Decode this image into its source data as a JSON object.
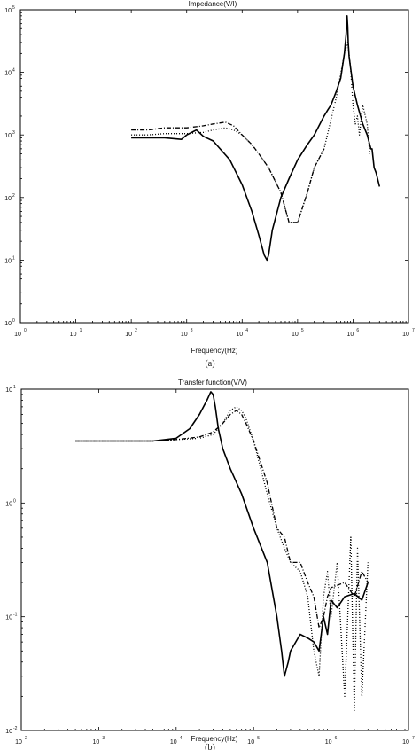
{
  "chart_data": [
    {
      "type": "line",
      "title": "Impedance(V/I)",
      "xlabel": "Frequency(Hz)",
      "ylabel": "",
      "caption": "(a)",
      "xscale": "log",
      "yscale": "log",
      "xlim": [
        1,
        10000000
      ],
      "ylim": [
        1,
        100000
      ],
      "xticks": [
        1,
        10,
        100,
        1000,
        10000,
        100000,
        1000000,
        10000000
      ],
      "yticks": [
        1,
        10,
        100,
        1000,
        10000,
        100000
      ],
      "series": [
        {
          "style": "solid",
          "color": "#000000",
          "x": [
            100,
            200,
            400,
            800,
            1000,
            1500,
            2000,
            3000,
            4000,
            6000,
            10000,
            15000,
            20000,
            25000,
            28000,
            30000,
            35000,
            50000,
            70000,
            100000,
            150000,
            200000,
            300000,
            350000,
            400000,
            500000,
            600000,
            700000,
            750000,
            780000,
            800000,
            820000,
            850000,
            900000,
            1000000,
            1200000,
            1500000,
            1800000,
            2000000,
            2100000,
            2200000,
            2400000,
            2600000,
            3000000
          ],
          "y": [
            900,
            900,
            900,
            850,
            1000,
            1200,
            950,
            800,
            600,
            400,
            160,
            60,
            25,
            12,
            10,
            12,
            30,
            100,
            200,
            400,
            700,
            1000,
            2000,
            2500,
            3000,
            5000,
            8000,
            20000,
            40000,
            80000,
            55000,
            30000,
            18000,
            12000,
            6000,
            3000,
            1500,
            1000,
            700,
            600,
            600,
            300,
            250,
            150
          ]
        },
        {
          "style": "dashdot",
          "color": "#000000",
          "x": [
            100,
            200,
            400,
            1000,
            2000,
            3000,
            5000,
            7000,
            10000,
            15000,
            20000,
            30000,
            50000,
            70000,
            100000,
            150000,
            200000,
            300000
          ],
          "y": [
            1200,
            1200,
            1300,
            1300,
            1400,
            1500,
            1600,
            1400,
            1000,
            700,
            500,
            300,
            120,
            40,
            40,
            120,
            300,
            600
          ]
        },
        {
          "style": "dotted",
          "color": "#000000",
          "x": [
            100,
            200,
            400,
            1000,
            2000,
            3000,
            5000,
            7000,
            10000,
            15000,
            20000,
            30000,
            50000,
            70000,
            100000,
            150000,
            200000,
            300000,
            500000,
            700000,
            800000,
            900000,
            1000000,
            1100000,
            1200000,
            1300000,
            1500000,
            1800000,
            2000000
          ],
          "y": [
            1000,
            1000,
            1050,
            1050,
            1100,
            1200,
            1300,
            1200,
            1000,
            700,
            500,
            300,
            120,
            40,
            40,
            120,
            300,
            600,
            4000,
            20000,
            30000,
            12000,
            3000,
            1500,
            2000,
            1000,
            3000,
            1500,
            500
          ]
        }
      ]
    },
    {
      "type": "line",
      "title": "Transfer function(V/V)",
      "xlabel": "Frequency(Hz)",
      "ylabel": "",
      "caption": "(b)",
      "xscale": "log",
      "yscale": "log",
      "xlim": [
        100,
        10000000
      ],
      "ylim": [
        0.01,
        10
      ],
      "xticks": [
        100,
        1000,
        10000,
        100000,
        1000000,
        10000000
      ],
      "yticks": [
        0.01,
        0.1,
        1,
        10
      ],
      "series": [
        {
          "style": "solid",
          "color": "#000000",
          "x": [
            500,
            1000,
            2000,
            5000,
            10000,
            15000,
            20000,
            25000,
            28000,
            30000,
            32000,
            35000,
            40000,
            50000,
            70000,
            100000,
            150000,
            200000,
            230000,
            250000,
            280000,
            300000,
            350000,
            400000,
            500000,
            600000,
            700000,
            800000,
            900000,
            1000000,
            1200000,
            1500000,
            2000000,
            2500000,
            3000000
          ],
          "y": [
            3.5,
            3.5,
            3.5,
            3.5,
            3.7,
            4.5,
            6,
            8,
            9.5,
            9,
            7,
            4.5,
            3,
            2,
            1.2,
            0.6,
            0.3,
            0.1,
            0.05,
            0.03,
            0.04,
            0.05,
            0.06,
            0.07,
            0.065,
            0.06,
            0.05,
            0.1,
            0.07,
            0.14,
            0.12,
            0.15,
            0.16,
            0.14,
            0.2
          ]
        },
        {
          "style": "dashdot",
          "color": "#000000",
          "x": [
            500,
            1000,
            2000,
            5000,
            10000,
            20000,
            30000,
            40000,
            50000,
            60000,
            70000,
            80000,
            100000,
            150000,
            200000,
            250000,
            300000,
            400000,
            500000,
            600000,
            700000,
            800000,
            900000,
            1000000,
            1500000,
            2000000,
            2500000,
            3000000
          ],
          "y": [
            3.5,
            3.5,
            3.5,
            3.5,
            3.6,
            3.8,
            4.2,
            5,
            6,
            6.5,
            6,
            5,
            3.5,
            1.5,
            0.6,
            0.5,
            0.3,
            0.3,
            0.2,
            0.15,
            0.08,
            0.1,
            0.15,
            0.18,
            0.2,
            0.15,
            0.25,
            0.2
          ]
        },
        {
          "style": "dotted",
          "color": "#000000",
          "x": [
            500,
            1000,
            2000,
            5000,
            10000,
            20000,
            30000,
            40000,
            50000,
            60000,
            70000,
            80000,
            100000,
            150000,
            200000,
            250000,
            300000,
            400000,
            500000,
            600000,
            700000,
            800000,
            900000,
            1000000,
            1200000,
            1500000,
            1800000,
            2000000,
            2200000,
            2500000,
            3000000
          ],
          "y": [
            3.5,
            3.5,
            3.5,
            3.5,
            3.6,
            3.7,
            4,
            5,
            6.5,
            7,
            6.5,
            5.5,
            3.5,
            1.2,
            0.6,
            0.4,
            0.3,
            0.25,
            0.15,
            0.05,
            0.03,
            0.15,
            0.25,
            0.1,
            0.3,
            0.02,
            0.5,
            0.015,
            0.4,
            0.02,
            0.3
          ]
        }
      ]
    }
  ]
}
